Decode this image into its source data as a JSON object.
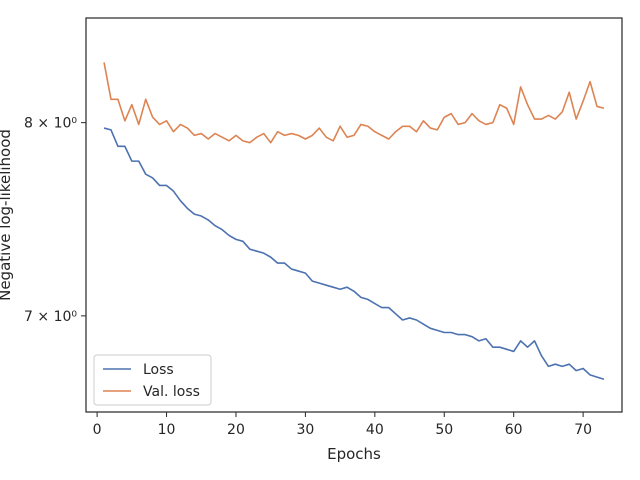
{
  "chart_data": {
    "type": "line",
    "xlabel": "Epochs",
    "ylabel": "Negative log-likelihood",
    "yscale": "log",
    "xlim": [
      -1.6,
      75.6
    ],
    "ylim": [
      6.55,
      8.6
    ],
    "xticks": [
      0,
      10,
      20,
      30,
      40,
      50,
      60,
      70
    ],
    "xtick_labels": [
      "0",
      "10",
      "20",
      "30",
      "40",
      "50",
      "60",
      "70"
    ],
    "yticks": [
      7,
      8
    ],
    "ytick_labels": [
      "7 × 10⁰",
      "8 × 10⁰"
    ],
    "grid": false,
    "legend": "lower-left",
    "series": [
      {
        "name": "Loss",
        "color": "#4c72b0",
        "x": [
          1,
          2,
          3,
          4,
          5,
          6,
          7,
          8,
          9,
          10,
          11,
          12,
          13,
          14,
          15,
          16,
          17,
          18,
          19,
          20,
          21,
          22,
          23,
          24,
          25,
          26,
          27,
          28,
          29,
          30,
          31,
          32,
          33,
          34,
          35,
          36,
          37,
          38,
          39,
          40,
          41,
          42,
          43,
          44,
          45,
          46,
          47,
          48,
          49,
          50,
          51,
          52,
          53,
          54,
          55,
          56,
          57,
          58,
          59,
          60,
          61,
          62,
          63,
          64,
          65,
          66,
          67,
          68,
          69,
          70,
          71,
          72,
          73
        ],
        "values": [
          7.97,
          7.96,
          7.87,
          7.87,
          7.79,
          7.79,
          7.72,
          7.7,
          7.66,
          7.66,
          7.63,
          7.58,
          7.54,
          7.51,
          7.5,
          7.48,
          7.45,
          7.43,
          7.4,
          7.38,
          7.37,
          7.33,
          7.32,
          7.31,
          7.29,
          7.26,
          7.26,
          7.23,
          7.22,
          7.21,
          7.17,
          7.16,
          7.15,
          7.14,
          7.13,
          7.14,
          7.12,
          7.09,
          7.08,
          7.06,
          7.04,
          7.04,
          7.01,
          6.98,
          6.99,
          6.98,
          6.96,
          6.94,
          6.93,
          6.92,
          6.92,
          6.91,
          6.91,
          6.9,
          6.88,
          6.89,
          6.85,
          6.85,
          6.84,
          6.83,
          6.88,
          6.85,
          6.88,
          6.81,
          6.76,
          6.77,
          6.76,
          6.77,
          6.74,
          6.75,
          6.72,
          6.71,
          6.7
        ]
      },
      {
        "name": "Val. loss",
        "color": "#dd8452",
        "x": [
          1,
          2,
          3,
          4,
          5,
          6,
          7,
          8,
          9,
          10,
          11,
          12,
          13,
          14,
          15,
          16,
          17,
          18,
          19,
          20,
          21,
          22,
          23,
          24,
          25,
          26,
          27,
          28,
          29,
          30,
          31,
          32,
          33,
          34,
          35,
          36,
          37,
          38,
          39,
          40,
          41,
          42,
          43,
          44,
          45,
          46,
          47,
          48,
          49,
          50,
          51,
          52,
          53,
          54,
          55,
          56,
          57,
          58,
          59,
          60,
          61,
          62,
          63,
          64,
          65,
          66,
          67,
          68,
          69,
          70,
          71,
          72,
          73
        ],
        "values": [
          8.34,
          8.13,
          8.13,
          8.01,
          8.1,
          7.99,
          8.13,
          8.03,
          7.99,
          8.01,
          7.95,
          7.99,
          7.97,
          7.93,
          7.94,
          7.91,
          7.94,
          7.92,
          7.9,
          7.93,
          7.9,
          7.89,
          7.92,
          7.94,
          7.89,
          7.95,
          7.93,
          7.94,
          7.93,
          7.91,
          7.93,
          7.97,
          7.92,
          7.9,
          7.98,
          7.92,
          7.93,
          7.99,
          7.98,
          7.95,
          7.93,
          7.91,
          7.95,
          7.98,
          7.98,
          7.95,
          8.01,
          7.97,
          7.96,
          8.03,
          8.05,
          7.99,
          8.0,
          8.05,
          8.01,
          7.99,
          8.0,
          8.1,
          8.08,
          7.99,
          8.2,
          8.1,
          8.02,
          8.02,
          8.04,
          8.02,
          8.06,
          8.17,
          8.02,
          8.12,
          8.23,
          8.09,
          8.08
        ]
      }
    ]
  }
}
